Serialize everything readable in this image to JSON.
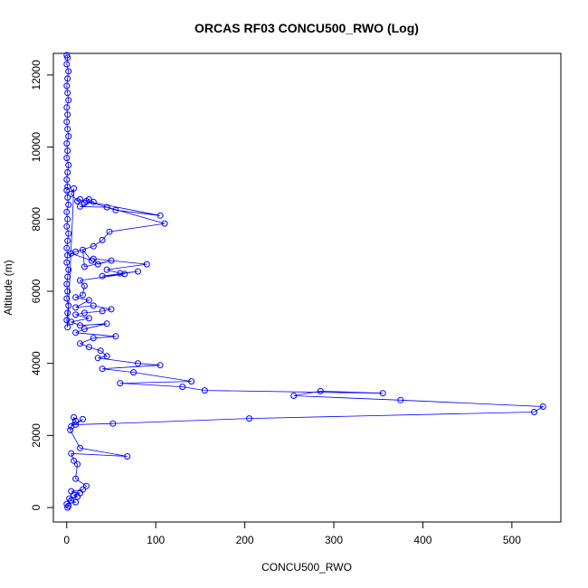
{
  "chart_data": {
    "type": "scatter",
    "title": "ORCAS RF03 CONCU500_RWO (Log)",
    "xlabel": "CONCU500_RWO",
    "ylabel": "Altitude (m)",
    "xlim": [
      -15,
      555
    ],
    "ylim": [
      -400,
      12600
    ],
    "xticks": [
      0,
      100,
      200,
      300,
      400,
      500
    ],
    "yticks": [
      0,
      2000,
      4000,
      6000,
      8000,
      10000,
      12000
    ],
    "series_color": "#0000ff",
    "point_style": "open-circle-with-lines",
    "grid": false,
    "legend": "none",
    "series": [
      {
        "x": [
          0,
          1,
          0,
          2,
          1,
          0,
          1,
          2,
          0,
          1,
          0,
          1,
          2,
          0,
          1,
          0,
          2,
          1,
          0,
          1,
          0,
          1,
          2,
          0,
          1,
          0,
          2,
          1,
          0,
          1,
          0,
          2,
          1,
          0,
          1,
          0,
          2,
          1,
          0,
          1,
          8,
          5,
          12,
          15,
          20,
          25,
          30,
          15,
          45,
          55,
          105,
          22,
          110,
          48,
          40,
          30,
          10,
          5,
          28,
          18,
          20,
          50,
          35,
          30,
          90,
          45,
          60,
          80,
          40,
          65,
          15,
          20,
          18,
          10,
          25,
          10,
          30,
          50,
          40,
          20,
          10,
          25,
          5,
          15,
          45,
          20,
          10,
          55,
          30,
          15,
          25,
          38,
          45,
          35,
          80,
          105,
          40,
          75,
          140,
          60,
          130,
          155,
          355,
          285,
          255,
          375,
          535,
          525,
          205,
          52,
          10,
          18,
          5,
          10,
          8,
          4,
          15,
          68,
          5,
          8,
          12,
          10,
          22,
          18,
          5,
          15,
          8,
          12,
          3,
          5,
          10,
          0,
          2,
          1
        ],
        "y": [
          12550,
          12480,
          12300,
          12100,
          11900,
          11700,
          11500,
          11300,
          11100,
          10900,
          10700,
          10500,
          10300,
          10100,
          9900,
          9700,
          9500,
          9300,
          9100,
          8900,
          8800,
          8600,
          8400,
          8200,
          8000,
          7800,
          7600,
          7400,
          7200,
          7000,
          6800,
          6600,
          6400,
          6200,
          6000,
          5800,
          5600,
          5400,
          5200,
          5000,
          8850,
          8700,
          8500,
          8550,
          8450,
          8550,
          8480,
          8350,
          8330,
          8250,
          8100,
          8500,
          7880,
          7650,
          7420,
          7250,
          7100,
          7050,
          6850,
          7150,
          6680,
          6850,
          6750,
          6900,
          6750,
          6600,
          6500,
          6550,
          6420,
          6480,
          6300,
          6150,
          5900,
          5830,
          5750,
          5550,
          5600,
          5500,
          5450,
          5400,
          5350,
          5250,
          5150,
          5050,
          5100,
          4950,
          4850,
          4750,
          4700,
          4550,
          4450,
          4350,
          4200,
          4150,
          4000,
          3950,
          3850,
          3750,
          3500,
          3450,
          3350,
          3250,
          3170,
          3230,
          3100,
          2980,
          2800,
          2650,
          2470,
          2330,
          2300,
          2450,
          2250,
          2400,
          2500,
          2150,
          1650,
          1420,
          1500,
          1300,
          1200,
          800,
          600,
          500,
          450,
          400,
          350,
          300,
          250,
          200,
          150,
          100,
          50,
          0
        ]
      }
    ]
  }
}
